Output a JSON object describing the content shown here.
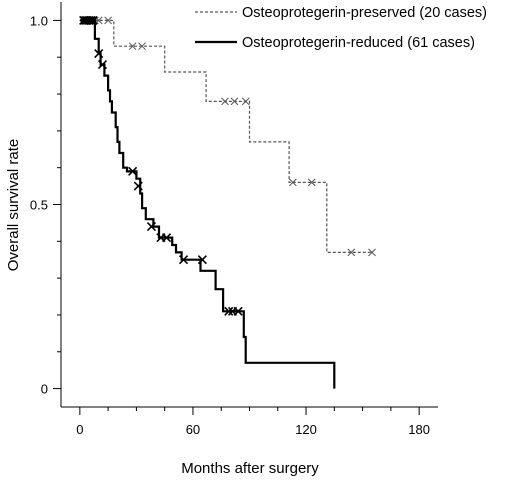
{
  "chart_data": {
    "type": "line",
    "subtype": "kaplan-meier step survival curve",
    "xlabel": "Months after surgery",
    "ylabel": "Overall survival rate",
    "xlim": [
      -10,
      190
    ],
    "ylim": [
      -0.05,
      1.05
    ],
    "x_ticks": [
      0,
      60,
      120,
      180
    ],
    "x_tick_labels": [
      "0",
      "60",
      "120",
      "180"
    ],
    "x_minor_ticks": [
      15,
      30,
      45,
      75,
      90,
      105,
      135,
      150,
      165
    ],
    "y_ticks": [
      0,
      0.5,
      1.0
    ],
    "y_tick_labels": [
      "0",
      "0.5",
      "1.0"
    ],
    "y_minor_ticks": [
      0.1,
      0.2,
      0.3,
      0.4,
      0.6,
      0.7,
      0.8,
      0.9
    ],
    "grid": false,
    "legend_position": "top-right",
    "series": [
      {
        "name": "Osteoprotegerin-preserved (20 cases)",
        "line_style": "dashed",
        "color": "#555555",
        "steps": [
          [
            0,
            1.0
          ],
          [
            18,
            1.0
          ],
          [
            18,
            0.93
          ],
          [
            45,
            0.93
          ],
          [
            45,
            0.86
          ],
          [
            67,
            0.86
          ],
          [
            67,
            0.78
          ],
          [
            90,
            0.78
          ],
          [
            90,
            0.67
          ],
          [
            111,
            0.67
          ],
          [
            111,
            0.56
          ],
          [
            131,
            0.56
          ],
          [
            131,
            0.37
          ],
          [
            155,
            0.37
          ]
        ],
        "censored": [
          [
            3,
            1.0
          ],
          [
            5,
            1.0
          ],
          [
            8,
            1.0
          ],
          [
            10,
            1.0
          ],
          [
            15,
            1.0
          ],
          [
            28,
            0.93
          ],
          [
            33,
            0.93
          ],
          [
            77,
            0.78
          ],
          [
            82,
            0.78
          ],
          [
            88,
            0.78
          ],
          [
            113,
            0.56
          ],
          [
            123,
            0.56
          ],
          [
            144,
            0.37
          ],
          [
            155,
            0.37
          ]
        ]
      },
      {
        "name": "Osteoprotegerin-reduced (61 cases)",
        "line_style": "solid",
        "color": "#000000",
        "steps": [
          [
            0,
            1.0
          ],
          [
            8,
            1.0
          ],
          [
            8,
            0.95
          ],
          [
            10,
            0.95
          ],
          [
            10,
            0.91
          ],
          [
            11,
            0.91
          ],
          [
            11,
            0.88
          ],
          [
            13,
            0.88
          ],
          [
            13,
            0.85
          ],
          [
            15,
            0.85
          ],
          [
            15,
            0.81
          ],
          [
            16,
            0.81
          ],
          [
            16,
            0.78
          ],
          [
            17,
            0.78
          ],
          [
            17,
            0.75
          ],
          [
            19,
            0.75
          ],
          [
            19,
            0.71
          ],
          [
            20,
            0.71
          ],
          [
            20,
            0.67
          ],
          [
            21,
            0.67
          ],
          [
            21,
            0.64
          ],
          [
            23,
            0.64
          ],
          [
            23,
            0.6
          ],
          [
            25,
            0.6
          ],
          [
            25,
            0.59
          ],
          [
            30,
            0.59
          ],
          [
            30,
            0.57
          ],
          [
            32,
            0.57
          ],
          [
            32,
            0.53
          ],
          [
            33,
            0.53
          ],
          [
            33,
            0.49
          ],
          [
            35,
            0.49
          ],
          [
            35,
            0.46
          ],
          [
            39,
            0.46
          ],
          [
            39,
            0.44
          ],
          [
            42,
            0.44
          ],
          [
            42,
            0.41
          ],
          [
            49,
            0.41
          ],
          [
            49,
            0.39
          ],
          [
            51,
            0.39
          ],
          [
            51,
            0.37
          ],
          [
            54,
            0.37
          ],
          [
            54,
            0.35
          ],
          [
            64,
            0.35
          ],
          [
            64,
            0.32
          ],
          [
            72,
            0.32
          ],
          [
            72,
            0.27
          ],
          [
            76,
            0.27
          ],
          [
            76,
            0.21
          ],
          [
            87,
            0.21
          ],
          [
            87,
            0.14
          ],
          [
            88,
            0.14
          ],
          [
            88,
            0.07
          ],
          [
            135,
            0.07
          ],
          [
            135,
            0.0
          ]
        ],
        "censored": [
          [
            2,
            1.0
          ],
          [
            3,
            1.0
          ],
          [
            4,
            1.0
          ],
          [
            5,
            1.0
          ],
          [
            6,
            1.0
          ],
          [
            7,
            1.0
          ],
          [
            10,
            0.91
          ],
          [
            12,
            0.88
          ],
          [
            28,
            0.59
          ],
          [
            31,
            0.55
          ],
          [
            38,
            0.44
          ],
          [
            43,
            0.41
          ],
          [
            46,
            0.41
          ],
          [
            55,
            0.35
          ],
          [
            65,
            0.35
          ],
          [
            79,
            0.21
          ],
          [
            81,
            0.21
          ],
          [
            84,
            0.21
          ]
        ]
      }
    ]
  }
}
